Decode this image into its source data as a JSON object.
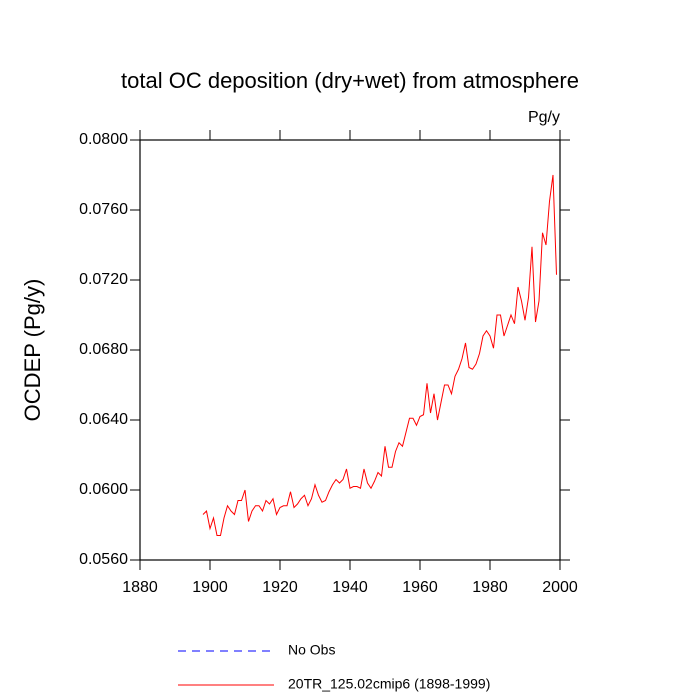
{
  "chart_data": {
    "type": "line",
    "title": "total OC deposition (dry+wet) from atmosphere",
    "units": "Pg/y",
    "y_label": "OCDEP  (Pg/y)",
    "x": [
      1898,
      1899,
      1900,
      1901,
      1902,
      1903,
      1904,
      1905,
      1906,
      1907,
      1908,
      1909,
      1910,
      1911,
      1912,
      1913,
      1914,
      1915,
      1916,
      1917,
      1918,
      1919,
      1920,
      1921,
      1922,
      1923,
      1924,
      1925,
      1926,
      1927,
      1928,
      1929,
      1930,
      1931,
      1932,
      1933,
      1934,
      1935,
      1936,
      1937,
      1938,
      1939,
      1940,
      1941,
      1942,
      1943,
      1944,
      1945,
      1946,
      1947,
      1948,
      1949,
      1950,
      1951,
      1952,
      1953,
      1954,
      1955,
      1956,
      1957,
      1958,
      1959,
      1960,
      1961,
      1962,
      1963,
      1964,
      1965,
      1966,
      1967,
      1968,
      1969,
      1970,
      1971,
      1972,
      1973,
      1974,
      1975,
      1976,
      1977,
      1978,
      1979,
      1980,
      1981,
      1982,
      1983,
      1984,
      1985,
      1986,
      1987,
      1988,
      1989,
      1990,
      1991,
      1992,
      1993,
      1994,
      1995,
      1996,
      1997,
      1998,
      1999
    ],
    "series": [
      {
        "name": "No Obs",
        "color": "#0000ff",
        "dashed": true,
        "values": [
          null,
          null,
          null,
          null,
          null,
          null,
          null,
          null,
          null,
          null,
          null,
          null,
          null,
          null,
          null,
          null,
          null,
          null,
          null,
          null,
          null,
          null,
          null,
          null,
          null,
          null,
          null,
          null,
          null,
          null,
          null,
          null,
          null,
          null,
          null,
          null,
          null,
          null,
          null,
          null,
          null,
          null,
          null,
          null,
          null,
          null,
          null,
          null,
          null,
          null,
          null,
          null,
          null,
          null,
          null,
          null,
          null,
          null,
          null,
          null,
          null,
          null,
          null,
          null,
          null,
          null,
          null,
          null,
          null,
          null,
          null,
          null,
          null,
          null,
          null,
          null,
          null,
          null,
          null,
          null,
          null,
          null,
          null,
          null,
          null,
          null,
          null,
          null,
          null,
          null,
          null,
          null,
          null,
          null,
          null,
          null,
          null,
          null,
          null,
          null,
          null,
          null
        ]
      },
      {
        "name": "20TR_125.02cmip6 (1898-1999)",
        "color": "#ff0000",
        "dashed": false,
        "values": [
          0.0586,
          0.0588,
          0.0578,
          0.0584,
          0.0574,
          0.0574,
          0.0584,
          0.0591,
          0.0588,
          0.0586,
          0.0594,
          0.0594,
          0.06,
          0.0582,
          0.0588,
          0.0591,
          0.0591,
          0.0588,
          0.0594,
          0.0592,
          0.0595,
          0.0586,
          0.059,
          0.0591,
          0.0591,
          0.0599,
          0.059,
          0.0592,
          0.0595,
          0.0597,
          0.0591,
          0.0595,
          0.0603,
          0.0597,
          0.0593,
          0.0594,
          0.0599,
          0.0603,
          0.0606,
          0.0604,
          0.0606,
          0.0612,
          0.0601,
          0.0602,
          0.0602,
          0.0601,
          0.0612,
          0.0604,
          0.0601,
          0.0605,
          0.061,
          0.0608,
          0.0625,
          0.0613,
          0.0613,
          0.0622,
          0.0627,
          0.0625,
          0.0633,
          0.0641,
          0.0641,
          0.0637,
          0.0642,
          0.0643,
          0.0661,
          0.0644,
          0.0655,
          0.064,
          0.065,
          0.066,
          0.066,
          0.0655,
          0.0665,
          0.0669,
          0.0675,
          0.0684,
          0.067,
          0.0669,
          0.0672,
          0.0678,
          0.0688,
          0.0691,
          0.0688,
          0.0681,
          0.07,
          0.07,
          0.0688,
          0.0694,
          0.07,
          0.0695,
          0.0716,
          0.0708,
          0.0697,
          0.071,
          0.0739,
          0.0696,
          0.0708,
          0.0747,
          0.074,
          0.0765,
          0.078,
          0.0723
        ]
      }
    ],
    "xlim": [
      1880,
      2000
    ],
    "xticks": [
      1880,
      1900,
      1920,
      1940,
      1960,
      1980,
      2000
    ],
    "ylim": [
      0.056,
      0.08
    ],
    "yticks": [
      {
        "value": 0.056,
        "label": "0.0560"
      },
      {
        "value": 0.06,
        "label": "0.0600"
      },
      {
        "value": 0.064,
        "label": "0.0640"
      },
      {
        "value": 0.068,
        "label": "0.0680"
      },
      {
        "value": 0.072,
        "label": "0.0720"
      },
      {
        "value": 0.076,
        "label": "0.0760"
      },
      {
        "value": 0.08,
        "label": "0.0800"
      }
    ],
    "grid": false
  }
}
